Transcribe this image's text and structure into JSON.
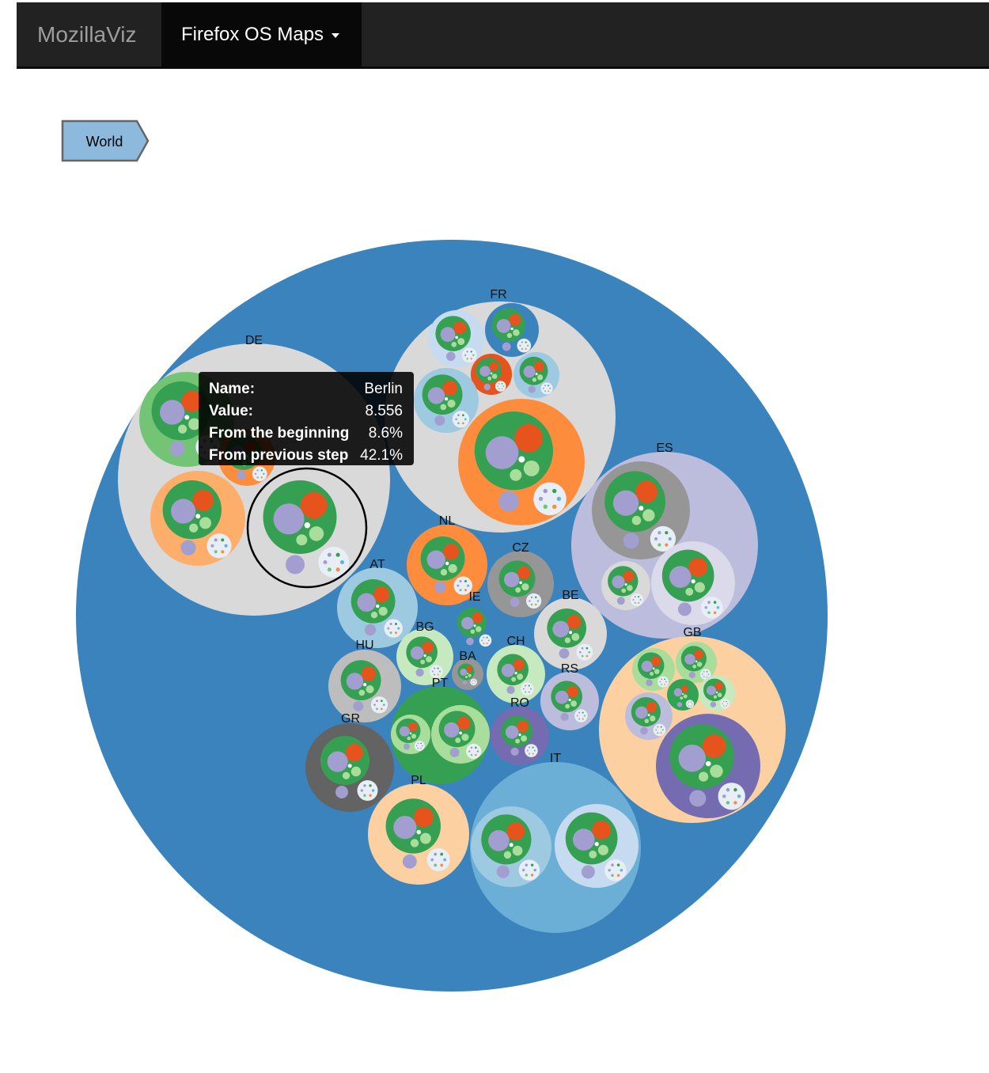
{
  "navbar": {
    "brand": "MozillaViz",
    "dropdown_label": "Firefox OS Maps"
  },
  "breadcrumb": {
    "items": [
      "World"
    ]
  },
  "tooltip": {
    "name_label": "Name:",
    "name_value": "Berlin",
    "value_label": "Value:",
    "value_value": "8.556",
    "beginning_label": "From the beginning",
    "beginning_value": "8.6%",
    "previous_label": "From previous step",
    "previous_value": "42.1%"
  },
  "colors": {
    "world": "#3a83bd",
    "navbar_bg": "#222222",
    "breadcrumb_fill": "#8db9dd",
    "highlight_stroke": "#000000",
    "palette": [
      "#36a052",
      "#a39ed0",
      "#e6531d",
      "#a9dd9b",
      "#d9d9d9",
      "#fd8d3c",
      "#fdbf7f",
      "#fdd0a2",
      "#bcbddc",
      "#9ecae1",
      "#c6dbef",
      "#6baed6",
      "#756bb1",
      "#969696",
      "#636363",
      "#74c476",
      "#c7e9c0",
      "#dadaeb",
      "#31a354"
    ]
  },
  "chart_data": {
    "type": "packed-circles",
    "root": "World",
    "highlighted": "Berlin",
    "countries": [
      "DE",
      "FR",
      "ES",
      "GB",
      "IT",
      "PL",
      "GR",
      "PT",
      "HU",
      "AT",
      "NL",
      "CZ",
      "BE",
      "IE",
      "BG",
      "BA",
      "CH",
      "RS",
      "RO"
    ]
  }
}
